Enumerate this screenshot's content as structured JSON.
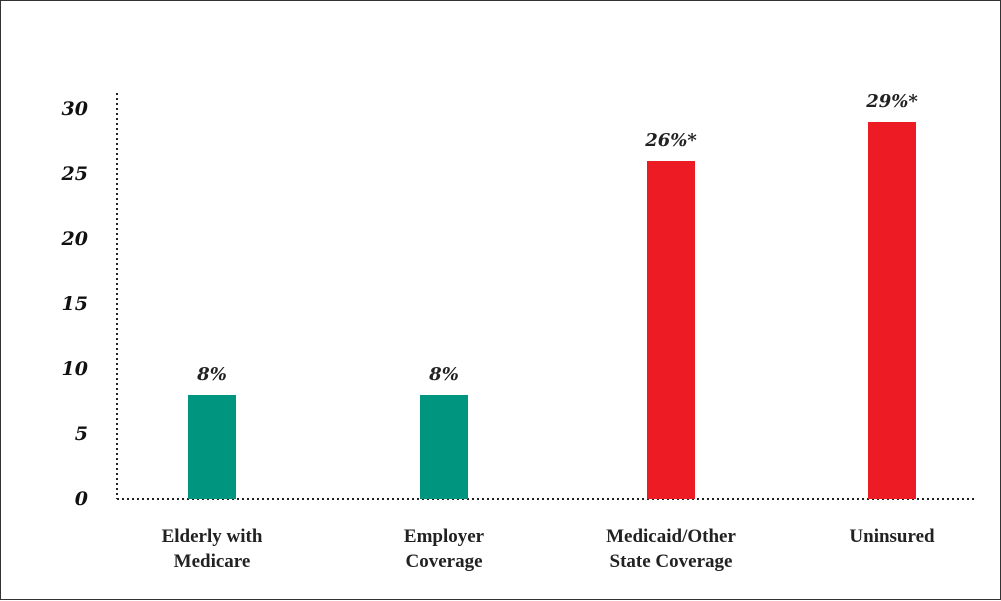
{
  "chart_data": {
    "type": "bar",
    "title": "",
    "xlabel": "",
    "ylabel": "",
    "ylim": [
      0,
      30
    ],
    "yticks": [
      0,
      5,
      10,
      15,
      20,
      25,
      30
    ],
    "categories": [
      [
        "Elderly with",
        "Medicare"
      ],
      [
        "Employer",
        "Coverage"
      ],
      [
        "Medicaid/Other",
        "State Coverage"
      ],
      [
        "Uninsured"
      ]
    ],
    "values": [
      8,
      8,
      26,
      29
    ],
    "data_labels": [
      "8%",
      "8%",
      "26%*",
      "29%*"
    ],
    "colors": [
      "#00957e",
      "#00957e",
      "#ed1c24",
      "#ed1c24"
    ]
  }
}
